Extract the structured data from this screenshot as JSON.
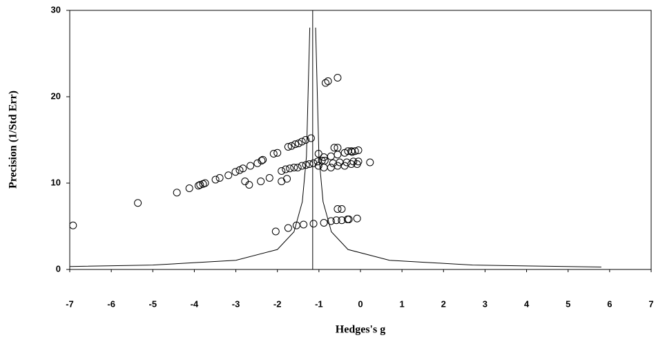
{
  "chart_data": {
    "type": "scatter",
    "x_label": "Hedges's g",
    "y_label": "Precision (1/Std Err)",
    "xlim": [
      -7,
      7
    ],
    "ylim": [
      0,
      30
    ],
    "xticks": [
      -7,
      -6,
      -5,
      -4,
      -3,
      -2,
      -1,
      0,
      1,
      2,
      3,
      4,
      5,
      6,
      7
    ],
    "yticks": [
      0,
      10,
      20,
      30
    ],
    "color": "#000000",
    "x": [
      -6.92,
      -5.36,
      -4.42,
      -4.12,
      -3.9,
      -3.86,
      -3.79,
      -3.74,
      -3.49,
      -3.39,
      -3.18,
      -3.01,
      -2.91,
      -2.83,
      -2.65,
      -2.48,
      -2.38,
      -2.35,
      -2.09,
      -2.0,
      -1.74,
      -1.66,
      -1.57,
      -1.49,
      -1.41,
      -1.32,
      -1.19,
      -2.78,
      -2.68,
      -2.4,
      -2.19,
      -1.9,
      -1.77,
      -1.9,
      -1.8,
      -1.7,
      -1.6,
      -1.51,
      -1.41,
      -1.31,
      -1.23,
      -1.13,
      -1.03,
      -0.93,
      -0.86,
      -1.01,
      -0.84,
      -0.78,
      -0.55,
      -1.01,
      -0.88,
      -0.71,
      -0.55,
      -0.38,
      -0.22,
      -0.08,
      -0.66,
      -0.5,
      -0.33,
      -0.17,
      -0.05,
      0.23,
      -0.88,
      -0.71,
      -0.55,
      -0.38,
      -0.22,
      -0.05,
      -0.63,
      -0.55,
      -0.55,
      -0.45,
      -2.04,
      -1.74,
      -1.54,
      -1.37,
      -1.13,
      -0.88,
      -0.71,
      -0.58,
      -0.45,
      -0.31,
      -0.28,
      -0.08,
      -0.3,
      -0.2,
      -0.13
    ],
    "values": [
      5.1,
      7.7,
      8.9,
      9.4,
      9.7,
      9.8,
      9.9,
      10.0,
      10.4,
      10.6,
      10.9,
      11.3,
      11.5,
      11.7,
      12.0,
      12.3,
      12.6,
      12.7,
      13.4,
      13.5,
      14.2,
      14.3,
      14.5,
      14.6,
      14.8,
      15.0,
      15.2,
      10.2,
      9.8,
      10.2,
      10.6,
      10.2,
      10.5,
      11.4,
      11.6,
      11.7,
      11.8,
      11.8,
      12.0,
      12.1,
      12.2,
      12.3,
      12.5,
      12.6,
      12.6,
      13.4,
      21.6,
      21.8,
      22.2,
      12.0,
      11.8,
      11.8,
      12.0,
      12.0,
      12.2,
      12.2,
      12.3,
      12.4,
      12.4,
      12.5,
      12.5,
      12.4,
      13.0,
      13.1,
      13.3,
      13.5,
      13.7,
      13.8,
      14.1,
      14.1,
      7.0,
      7.0,
      4.4,
      4.8,
      5.1,
      5.2,
      5.3,
      5.4,
      5.6,
      5.7,
      5.7,
      5.8,
      5.8,
      5.9,
      13.7,
      13.6,
      13.7
    ],
    "funnel": {
      "x": [
        -7,
        -5,
        -3,
        -2,
        -1.6,
        -1.4,
        -1.3,
        -1.22,
        null,
        -1.08,
        -1.0,
        -0.9,
        -0.7,
        -0.3,
        0.7,
        2.7,
        5.8
      ],
      "values": [
        0.34,
        0.51,
        1.06,
        2.31,
        4.36,
        7.84,
        13.1,
        28,
        null,
        28,
        13.1,
        7.84,
        4.36,
        2.31,
        1.06,
        0.51,
        0.28
      ]
    },
    "vline": -1.15
  }
}
